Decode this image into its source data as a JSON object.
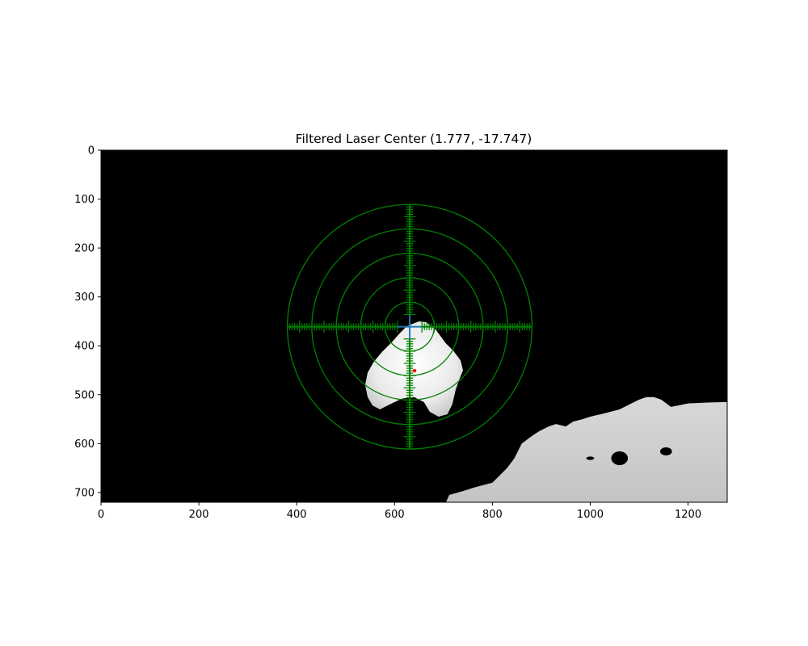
{
  "chart_data": {
    "type": "image",
    "title": "Filtered Laser Center (1.777, -17.747)",
    "xlim": [
      0,
      1280
    ],
    "ylim": [
      720,
      0
    ],
    "x_ticks": [
      0,
      200,
      400,
      600,
      800,
      1000,
      1200
    ],
    "y_ticks": [
      0,
      100,
      200,
      300,
      400,
      500,
      600,
      700
    ],
    "crosshair_center": [
      631,
      361
    ],
    "laser_center": [
      641,
      451
    ],
    "ring_radii": [
      50,
      100,
      150,
      200,
      250
    ],
    "scale_tick_spacing": 5,
    "scale_arm_extent": 250,
    "scale_center_gap": 25,
    "blob_outline": [
      [
        610,
        375
      ],
      [
        625,
        360
      ],
      [
        650,
        350
      ],
      [
        665,
        352
      ],
      [
        685,
        368
      ],
      [
        705,
        395
      ],
      [
        720,
        410
      ],
      [
        735,
        430
      ],
      [
        740,
        450
      ],
      [
        732,
        470
      ],
      [
        725,
        490
      ],
      [
        718,
        520
      ],
      [
        708,
        540
      ],
      [
        690,
        545
      ],
      [
        672,
        535
      ],
      [
        660,
        515
      ],
      [
        640,
        505
      ],
      [
        615,
        508
      ],
      [
        590,
        520
      ],
      [
        570,
        530
      ],
      [
        555,
        522
      ],
      [
        545,
        505
      ],
      [
        540,
        480
      ],
      [
        545,
        455
      ],
      [
        558,
        432
      ],
      [
        575,
        412
      ],
      [
        595,
        392
      ]
    ],
    "terrain_outline": [
      [
        705,
        720
      ],
      [
        712,
        705
      ],
      [
        740,
        697
      ],
      [
        762,
        690
      ],
      [
        800,
        680
      ],
      [
        830,
        650
      ],
      [
        845,
        630
      ],
      [
        860,
        600
      ],
      [
        880,
        585
      ],
      [
        895,
        575
      ],
      [
        915,
        565
      ],
      [
        930,
        560
      ],
      [
        950,
        565
      ],
      [
        965,
        555
      ],
      [
        985,
        550
      ],
      [
        1000,
        545
      ],
      [
        1030,
        538
      ],
      [
        1060,
        530
      ],
      [
        1080,
        520
      ],
      [
        1100,
        510
      ],
      [
        1115,
        505
      ],
      [
        1130,
        505
      ],
      [
        1145,
        510
      ],
      [
        1165,
        525
      ],
      [
        1180,
        522
      ],
      [
        1200,
        518
      ],
      [
        1240,
        516
      ],
      [
        1280,
        515
      ],
      [
        1280,
        720
      ]
    ],
    "terrain_holes": [
      {
        "cx": 1000,
        "cy": 630,
        "rx": 8,
        "ry": 3.5
      },
      {
        "cx": 1060,
        "cy": 630,
        "rx": 17,
        "ry": 14
      },
      {
        "cx": 1155,
        "cy": 616,
        "rx": 12,
        "ry": 8
      }
    ],
    "colors": {
      "background": "#000000",
      "rings": "#008000",
      "scale": "#008000",
      "crosshair": "#1f77b4",
      "laser_dot": "#ff0000",
      "blob": "#f2f2f2",
      "terrain": "#cfcfcf"
    }
  }
}
